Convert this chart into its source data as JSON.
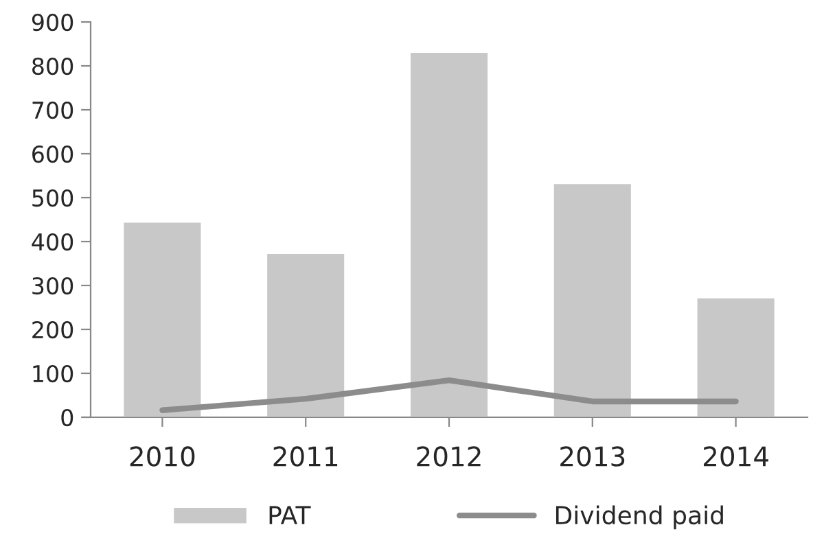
{
  "chart_data": {
    "type": "bar",
    "categories": [
      "2010",
      "2011",
      "2012",
      "2013",
      "2014"
    ],
    "series": [
      {
        "name": "PAT",
        "color": "#c8c8c8",
        "values": [
          445,
          374,
          832,
          533,
          273
        ]
      },
      {
        "name": "Dividend paid",
        "type": "line",
        "color": "#8c8c8c",
        "values": [
          16,
          42,
          84,
          36,
          36
        ]
      }
    ],
    "ylim": [
      0,
      900
    ],
    "yticks": [
      0,
      100,
      200,
      300,
      400,
      500,
      600,
      700,
      800,
      900
    ],
    "grid": false,
    "legend": "bottom",
    "marker": "none",
    "line_style": "solid"
  }
}
